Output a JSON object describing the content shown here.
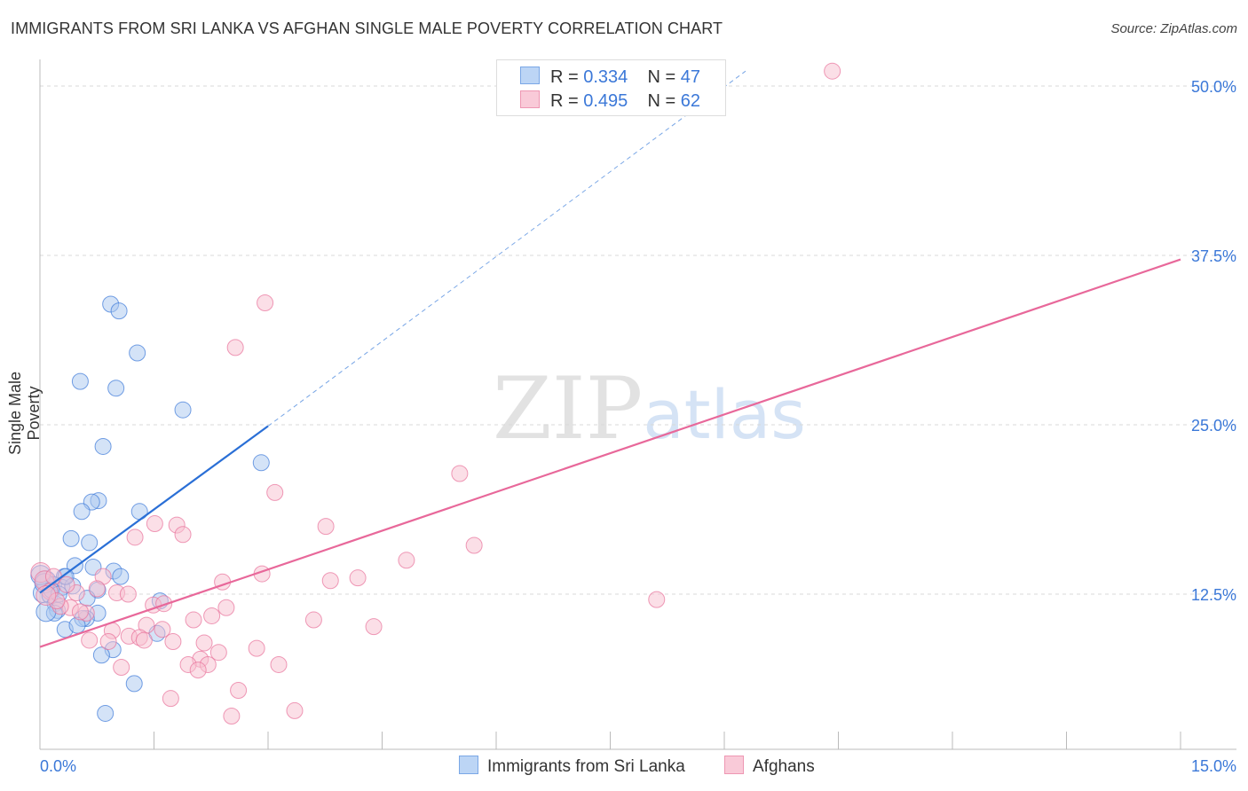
{
  "title": "IMMIGRANTS FROM SRI LANKA VS AFGHAN SINGLE MALE POVERTY CORRELATION CHART",
  "source": "Source: ZipAtlas.com",
  "watermark": {
    "zip": "ZIP",
    "atlas": "atlas"
  },
  "chart_data": {
    "type": "scatter",
    "title": "IMMIGRANTS FROM SRI LANKA VS AFGHAN SINGLE MALE POVERTY CORRELATION CHART",
    "xlabel": "",
    "ylabel": "Single Male Poverty",
    "xlim": [
      0,
      15
    ],
    "ylim": [
      1,
      52
    ],
    "x_tick_labels": [
      "0.0%",
      "15.0%"
    ],
    "y_ticks": [
      12.5,
      25,
      37.5,
      50
    ],
    "y_tick_labels": [
      "12.5%",
      "25.0%",
      "37.5%",
      "50.0%"
    ],
    "grid": true,
    "legend_position": "top-center",
    "series": [
      {
        "name": "Immigrants from Sri Lanka",
        "color": "#3b78d8",
        "fill": "#a9c8f0",
        "R": "0.334",
        "N": "47",
        "trend": {
          "x0": 0,
          "y0": 12.6,
          "x1": 3.0,
          "y1": 24.9,
          "dash_to_x": 9.28,
          "dash_to_y": 51.1
        },
        "points": [
          [
            0.93,
            33.9
          ],
          [
            1.04,
            33.4
          ],
          [
            1.28,
            30.3
          ],
          [
            0.53,
            28.2
          ],
          [
            1.0,
            27.7
          ],
          [
            1.88,
            26.1
          ],
          [
            0.83,
            23.4
          ],
          [
            2.91,
            22.2
          ],
          [
            0.77,
            19.4
          ],
          [
            0.68,
            19.3
          ],
          [
            0.55,
            18.6
          ],
          [
            1.31,
            18.6
          ],
          [
            0.41,
            16.6
          ],
          [
            0.65,
            16.3
          ],
          [
            0.46,
            14.6
          ],
          [
            0.7,
            14.5
          ],
          [
            0.97,
            14.2
          ],
          [
            1.06,
            13.8
          ],
          [
            0.32,
            13.8
          ],
          [
            0.08,
            13.5
          ],
          [
            0.18,
            13.2
          ],
          [
            0.29,
            13.0
          ],
          [
            0.43,
            13.1
          ],
          [
            0.04,
            12.6
          ],
          [
            0.13,
            12.4
          ],
          [
            0.76,
            12.8
          ],
          [
            1.58,
            12.0
          ],
          [
            0.62,
            12.2
          ],
          [
            0.2,
            11.8
          ],
          [
            0.23,
            11.3
          ],
          [
            0.76,
            11.1
          ],
          [
            0.61,
            10.7
          ],
          [
            0.56,
            10.7
          ],
          [
            0.19,
            11.1
          ],
          [
            0.33,
            9.9
          ],
          [
            0.49,
            10.2
          ],
          [
            1.54,
            9.6
          ],
          [
            0.96,
            8.4
          ],
          [
            0.81,
            8.0
          ],
          [
            1.24,
            5.9
          ],
          [
            0.86,
            3.7
          ],
          [
            0.01,
            13.9
          ],
          [
            0.06,
            13.3
          ],
          [
            0.15,
            12.8
          ],
          [
            0.25,
            12.5
          ],
          [
            0.34,
            13.8
          ],
          [
            0.08,
            11.2
          ]
        ]
      },
      {
        "name": "Afghans",
        "color": "#e8719a",
        "fill": "#f7c0d0",
        "R": "0.495",
        "N": "62",
        "trend": {
          "x0": 0,
          "y0": 8.6,
          "x1": 15,
          "y1": 37.2
        },
        "points": [
          [
            10.42,
            51.1
          ],
          [
            2.96,
            34.0
          ],
          [
            2.57,
            30.7
          ],
          [
            5.52,
            21.4
          ],
          [
            3.09,
            20.0
          ],
          [
            3.76,
            17.5
          ],
          [
            1.8,
            17.6
          ],
          [
            1.51,
            17.7
          ],
          [
            1.88,
            16.9
          ],
          [
            1.25,
            16.7
          ],
          [
            5.71,
            16.1
          ],
          [
            4.82,
            15.0
          ],
          [
            2.92,
            14.0
          ],
          [
            4.18,
            13.7
          ],
          [
            3.82,
            13.5
          ],
          [
            2.4,
            13.4
          ],
          [
            0.83,
            13.8
          ],
          [
            0.75,
            12.9
          ],
          [
            1.01,
            12.6
          ],
          [
            1.16,
            12.5
          ],
          [
            8.11,
            12.1
          ],
          [
            1.49,
            11.7
          ],
          [
            1.63,
            11.8
          ],
          [
            2.45,
            11.5
          ],
          [
            2.26,
            10.9
          ],
          [
            2.02,
            10.6
          ],
          [
            3.6,
            10.6
          ],
          [
            4.39,
            10.1
          ],
          [
            0.61,
            11.1
          ],
          [
            0.4,
            11.5
          ],
          [
            0.27,
            11.6
          ],
          [
            0.95,
            9.8
          ],
          [
            1.4,
            10.2
          ],
          [
            1.61,
            9.9
          ],
          [
            1.17,
            9.4
          ],
          [
            1.31,
            9.3
          ],
          [
            1.37,
            9.1
          ],
          [
            1.75,
            9.0
          ],
          [
            0.65,
            9.1
          ],
          [
            0.9,
            9.0
          ],
          [
            2.16,
            8.9
          ],
          [
            2.85,
            8.5
          ],
          [
            2.35,
            8.2
          ],
          [
            2.11,
            7.7
          ],
          [
            1.95,
            7.3
          ],
          [
            2.21,
            7.3
          ],
          [
            2.08,
            6.9
          ],
          [
            3.14,
            7.3
          ],
          [
            1.07,
            7.1
          ],
          [
            2.61,
            5.4
          ],
          [
            1.72,
            4.8
          ],
          [
            2.52,
            3.5
          ],
          [
            3.35,
            3.9
          ],
          [
            0.01,
            14.1
          ],
          [
            0.06,
            13.5
          ],
          [
            0.13,
            12.7
          ],
          [
            0.22,
            12.0
          ],
          [
            0.08,
            12.4
          ],
          [
            0.48,
            12.6
          ],
          [
            0.53,
            11.2
          ],
          [
            0.18,
            13.8
          ],
          [
            0.35,
            13.2
          ]
        ]
      }
    ]
  },
  "legend": {
    "r_label": "R =",
    "n_label": "N =",
    "rows": [
      {
        "r": "0.334",
        "n": "47"
      },
      {
        "r": "0.495",
        "n": "62"
      }
    ]
  }
}
